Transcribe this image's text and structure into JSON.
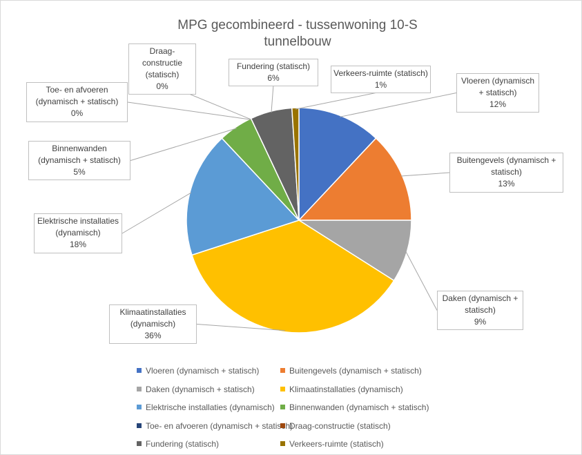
{
  "chart_data": {
    "type": "pie",
    "title": "MPG gecombineerd - tussenwoning 10-S tunnelbouw",
    "categories": [
      "Vloeren (dynamisch + statisch)",
      "Buitengevels (dynamisch + statisch)",
      "Daken (dynamisch + statisch)",
      "Klimaatinstallaties (dynamisch)",
      "Elektrische installaties (dynamisch)",
      "Binnenwanden (dynamisch + statisch)",
      "Toe- en afvoeren (dynamisch + statisch)",
      "Draag-constructie (statisch)",
      "Fundering (statisch)",
      "Verkeers-ruimte (statisch)"
    ],
    "values": [
      12,
      13,
      9,
      36,
      18,
      5,
      0,
      0,
      6,
      1
    ],
    "value_labels": [
      "12%",
      "13%",
      "9%",
      "36%",
      "18%",
      "5%",
      "0%",
      "0%",
      "6%",
      "1%"
    ],
    "colors": [
      "#4472c4",
      "#ed7d31",
      "#a5a5a5",
      "#ffc000",
      "#5b9bd5",
      "#70ad47",
      "#264478",
      "#9e480e",
      "#636363",
      "#997300"
    ],
    "legend": "bottom"
  }
}
